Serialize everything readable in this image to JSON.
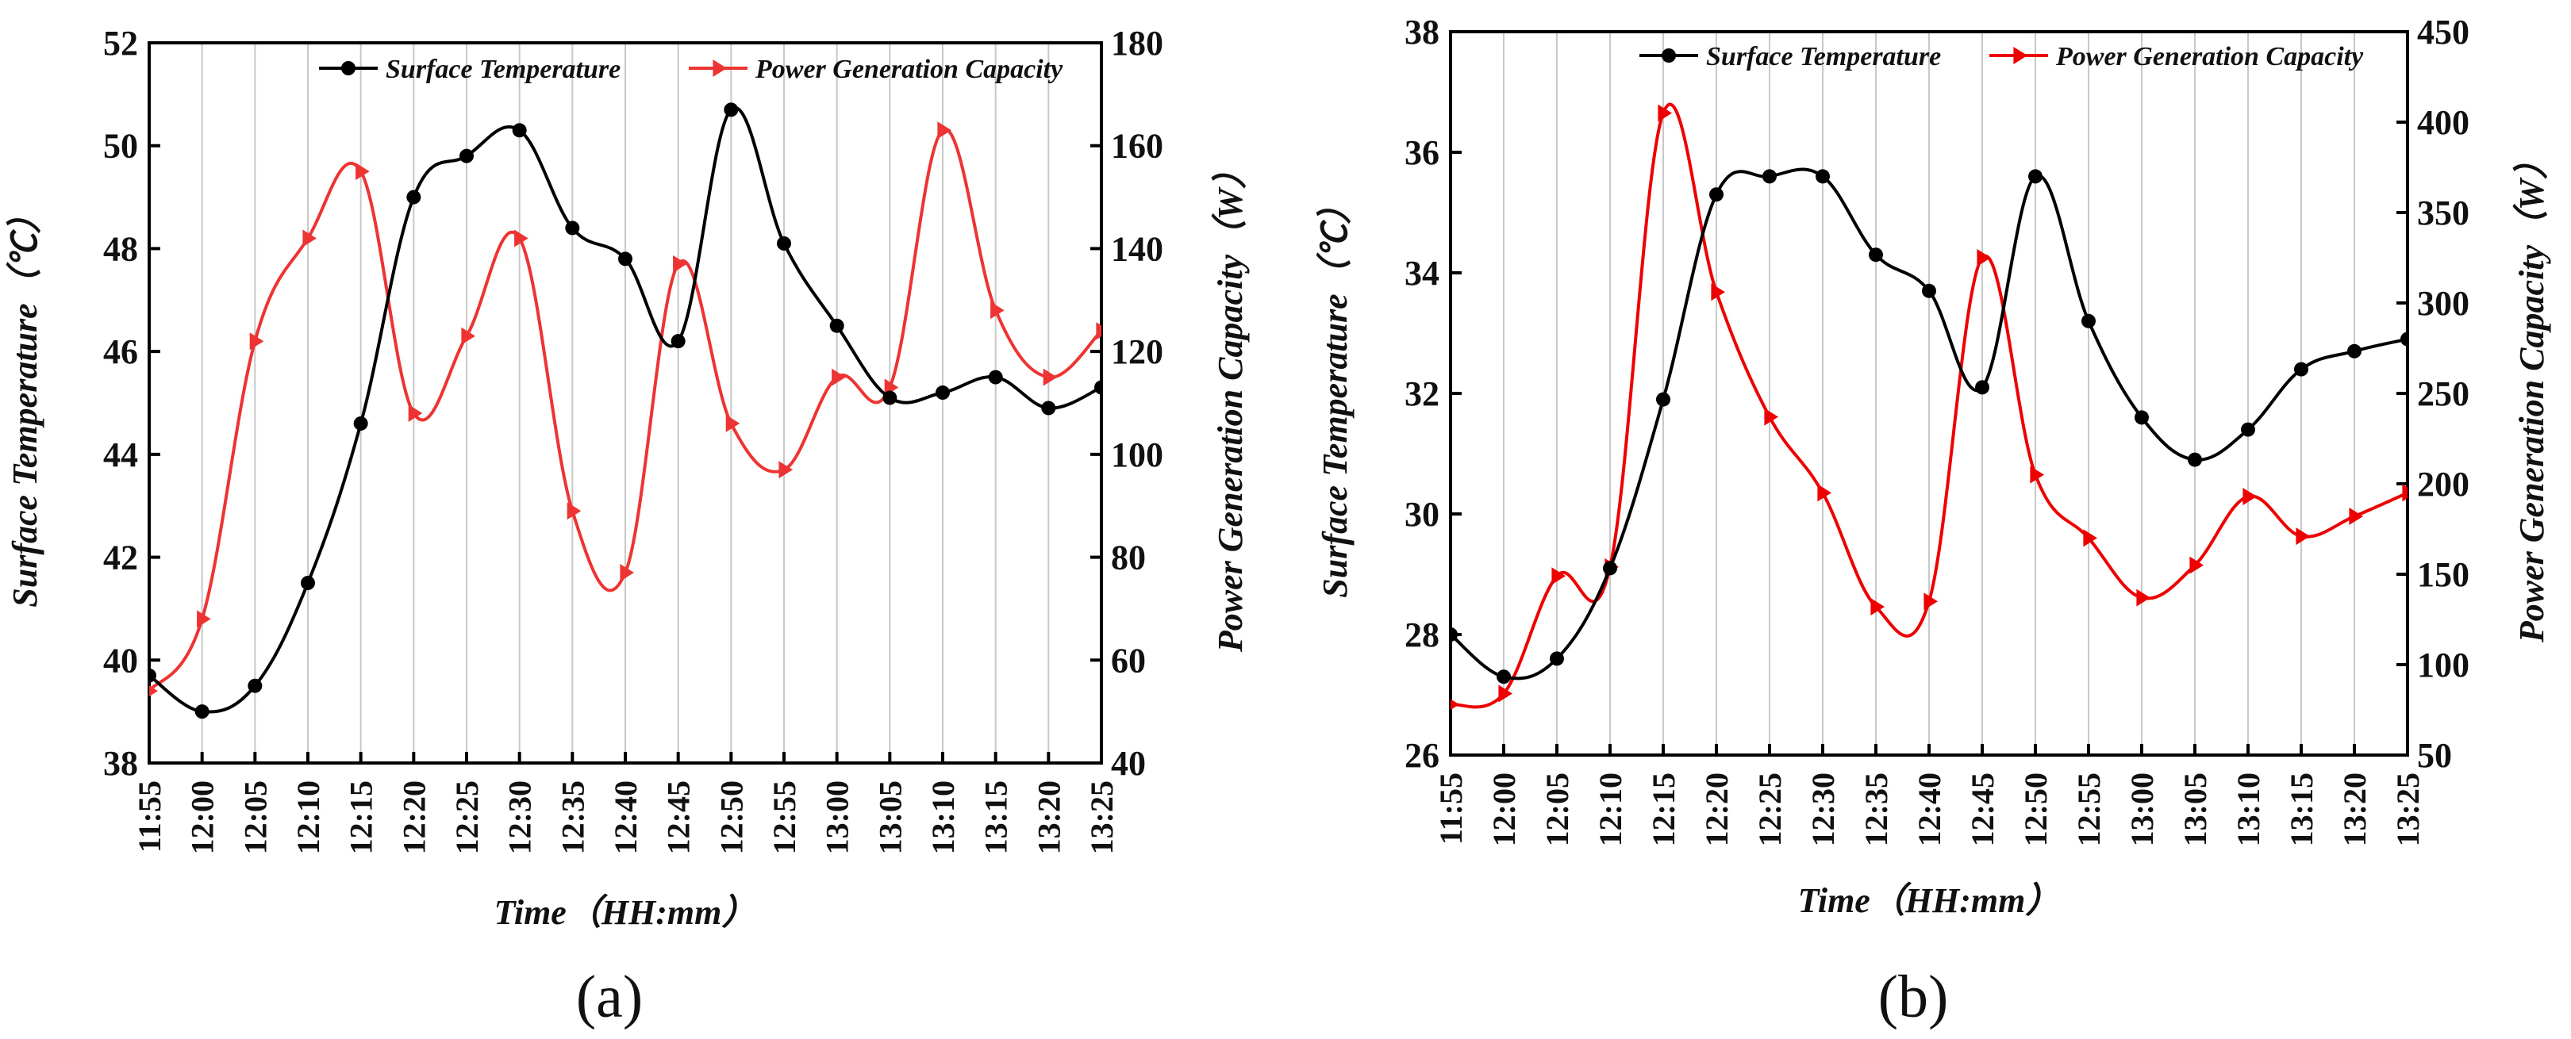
{
  "chart_data": [
    {
      "type": "line",
      "caption": "(a)",
      "categories": [
        "11:55",
        "12:00",
        "12:05",
        "12:10",
        "12:15",
        "12:20",
        "12:25",
        "12:30",
        "12:35",
        "12:40",
        "12:45",
        "12:50",
        "12:55",
        "13:00",
        "13:05",
        "13:10",
        "13:15",
        "13:20",
        "13:25"
      ],
      "xlabel": "Time（HH:mm）",
      "ylabel": "Surface Temperature（℃）",
      "ylabel_right": "Power Generation Capacity（W）",
      "ylim": [
        38,
        52
      ],
      "yticks": [
        38,
        40,
        42,
        44,
        46,
        48,
        50,
        52
      ],
      "ylim_right": [
        40,
        180
      ],
      "yticks_right": [
        40,
        60,
        80,
        100,
        120,
        140,
        160,
        180
      ],
      "grid": "vertical",
      "legend_position": "top",
      "series": [
        {
          "name": "Surface Temperature",
          "axis": "left",
          "color": "#000000",
          "marker": "circle",
          "values": [
            39.7,
            39.0,
            39.5,
            41.5,
            44.6,
            49.0,
            49.8,
            50.3,
            48.4,
            47.8,
            46.2,
            50.7,
            48.1,
            46.5,
            45.1,
            45.2,
            45.5,
            44.9,
            45.3
          ]
        },
        {
          "name": "Power Generation Capacity",
          "axis": "right",
          "color": "#ee3333",
          "marker": "triangle-right",
          "values": [
            54,
            68,
            122,
            142,
            155,
            108,
            123,
            142,
            89,
            77,
            137,
            106,
            97,
            115,
            113,
            163,
            128,
            115,
            124
          ]
        }
      ]
    },
    {
      "type": "line",
      "caption": "(b)",
      "categories": [
        "11:55",
        "12:00",
        "12:05",
        "12:10",
        "12:15",
        "12:20",
        "12:25",
        "12:30",
        "12:35",
        "12:40",
        "12:45",
        "12:50",
        "12:55",
        "13:00",
        "13:05",
        "13:10",
        "13:15",
        "13:20",
        "13:25"
      ],
      "xlabel": "Time（HH:mm）",
      "ylabel": "Surface Temperature（℃）",
      "ylabel_right": "Power Generation Capacity（W）",
      "ylim": [
        26,
        38
      ],
      "yticks": [
        26,
        28,
        30,
        32,
        34,
        36,
        38
      ],
      "ylim_right": [
        50,
        450
      ],
      "yticks_right": [
        50,
        100,
        150,
        200,
        250,
        300,
        350,
        400,
        450
      ],
      "grid": "vertical",
      "legend_position": "top",
      "series": [
        {
          "name": "Surface Temperature",
          "axis": "left",
          "color": "#000000",
          "marker": "circle",
          "values": [
            28.0,
            27.3,
            27.6,
            29.1,
            31.9,
            35.3,
            35.6,
            35.6,
            34.3,
            33.7,
            32.1,
            35.6,
            33.2,
            31.6,
            30.9,
            31.4,
            32.4,
            32.7,
            32.9
          ]
        },
        {
          "name": "Power Generation Capacity",
          "axis": "right",
          "color": "#ee0000",
          "marker": "triangle-right",
          "values": [
            78,
            84,
            149,
            154,
            405,
            306,
            237,
            195,
            132,
            135,
            325,
            205,
            170,
            137,
            155,
            193,
            171,
            182,
            195
          ]
        }
      ]
    }
  ]
}
